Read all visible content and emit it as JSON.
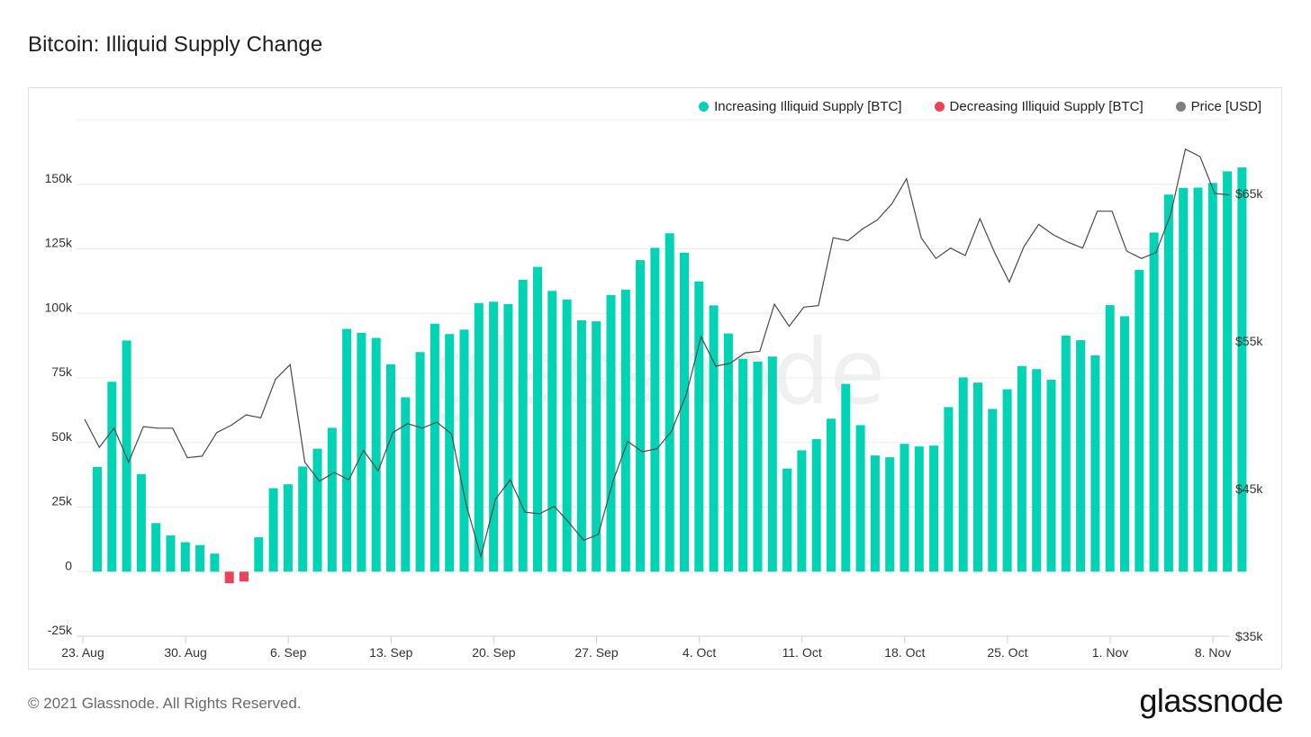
{
  "header": {
    "title": "Bitcoin: Illiquid Supply Change"
  },
  "footer": {
    "copyright": "© 2021 Glassnode. All Rights Reserved.",
    "logo": "glassnode",
    "watermark": "glassnode"
  },
  "colors": {
    "increase": "#00d4b4",
    "decrease": "#f0415a",
    "price": "#4a4a4a",
    "price_legend": "#7f7f7f",
    "grid": "#ececec"
  },
  "chart_data": {
    "type": "bar",
    "title": "Bitcoin: Illiquid Supply Change",
    "legend": [
      {
        "label": "Increasing Illiquid Supply [BTC]",
        "color": "#00d4b4"
      },
      {
        "label": "Decreasing Illiquid Supply [BTC]",
        "color": "#f0415a"
      },
      {
        "label": "Price [USD]",
        "color": "#7f7f7f"
      }
    ],
    "legend_position": "top-right",
    "x_ticks": [
      "23. Aug",
      "30. Aug",
      "6. Sep",
      "13. Sep",
      "20. Sep",
      "27. Sep",
      "4. Oct",
      "11. Oct",
      "18. Oct",
      "25. Oct",
      "1. Nov",
      "8. Nov"
    ],
    "start_date": "2021-08-23",
    "y_left": {
      "ticks": [
        "-25k",
        "0",
        "25k",
        "50k",
        "75k",
        "100k",
        "125k",
        "150k"
      ],
      "range": [
        -25000,
        175000
      ]
    },
    "y_right": {
      "ticks": [
        "$35k",
        "$45k",
        "$55k",
        "$65k"
      ],
      "range": [
        35000,
        70000
      ]
    },
    "series": [
      {
        "name": "Illiquid Supply Change [BTC]",
        "values": [
          40500,
          73500,
          89500,
          37800,
          18800,
          14000,
          11400,
          10300,
          7000,
          -4500,
          -3800,
          13300,
          32300,
          33800,
          40700,
          47600,
          55700,
          94000,
          92500,
          90500,
          80300,
          67500,
          85000,
          96000,
          92000,
          93700,
          104000,
          104500,
          103600,
          113000,
          118000,
          108700,
          105400,
          97300,
          96900,
          107100,
          109200,
          120600,
          125400,
          131000,
          123500,
          112400,
          103100,
          92200,
          82400,
          81300,
          83300,
          39900,
          47000,
          51300,
          59200,
          72700,
          56700,
          45000,
          44300,
          49500,
          48500,
          48800,
          63700,
          75200,
          73200,
          63000,
          70600,
          79600,
          78400,
          74300,
          91400,
          89600,
          83700,
          103200,
          98900,
          116800,
          131300,
          146000,
          148600,
          148700,
          150500,
          155000,
          156500
        ],
        "axis": "left"
      },
      {
        "name": "Price [USD]",
        "values": [
          49700,
          47800,
          49100,
          46800,
          49200,
          49100,
          49100,
          47100,
          47200,
          48800,
          49300,
          50000,
          49800,
          52400,
          53400,
          46800,
          45500,
          46100,
          45600,
          47600,
          46200,
          48800,
          49400,
          49100,
          49500,
          48700,
          43900,
          40400,
          44300,
          45600,
          43400,
          43300,
          43800,
          42700,
          41500,
          41900,
          45500,
          48200,
          47500,
          47700,
          48900,
          51400,
          55300,
          53300,
          53500,
          54200,
          54300,
          57500,
          56000,
          57300,
          57400,
          62000,
          61800,
          62600,
          63200,
          64300,
          66000,
          62000,
          60600,
          61300,
          60800,
          63300,
          61000,
          59000,
          61400,
          62900,
          62200,
          61700,
          61300,
          63800,
          63800,
          61100,
          60600,
          61000,
          63600,
          68000,
          67500,
          65000,
          64900
        ],
        "axis": "right"
      }
    ]
  }
}
